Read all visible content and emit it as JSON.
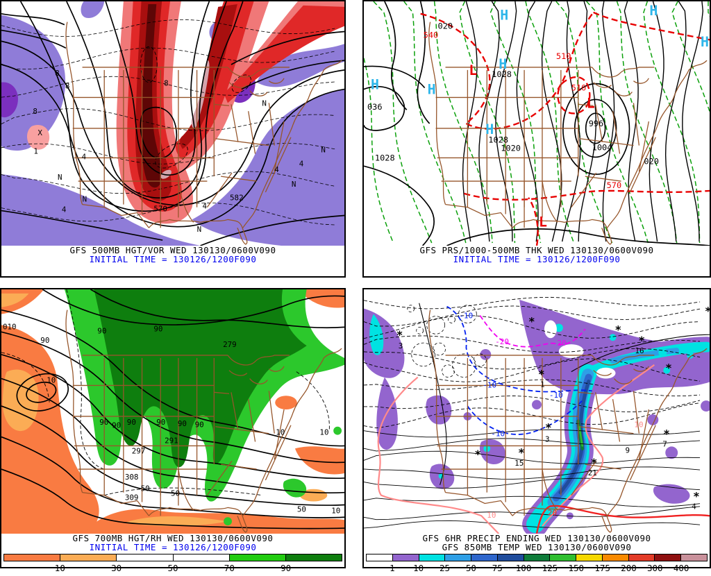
{
  "panels": [
    {
      "id": "500mb-hgt-vor",
      "caption_line1": "GFS 500MB HGT/VOR WED 130130/0600V090",
      "caption_line2": "INITIAL TIME = 130126/1200F090",
      "caption_line2_color": "#0000ee",
      "labels": [
        [
          "8",
          78,
          108,
          "k"
        ],
        [
          "8",
          93,
          127,
          "k"
        ],
        [
          "8",
          46,
          164,
          "k"
        ],
        [
          "X",
          53,
          195,
          "k"
        ],
        [
          "1",
          47,
          222,
          "k"
        ],
        [
          "4",
          117,
          230,
          "k"
        ],
        [
          "N",
          82,
          260,
          "k"
        ],
        [
          "N",
          118,
          292,
          "k"
        ],
        [
          "4",
          88,
          307,
          "k"
        ],
        [
          "570",
          222,
          306,
          "k"
        ],
        [
          "582",
          333,
          290,
          "k"
        ],
        [
          "4",
          293,
          302,
          "k"
        ],
        [
          "N",
          285,
          336,
          "k"
        ],
        [
          "N",
          423,
          270,
          "k"
        ],
        [
          "4",
          398,
          249,
          "k"
        ],
        [
          "4",
          434,
          240,
          "k"
        ],
        [
          "N",
          466,
          220,
          "k"
        ],
        [
          "8",
          237,
          123,
          "k"
        ],
        [
          "N",
          380,
          152,
          "k"
        ]
      ]
    },
    {
      "id": "prs-thickness",
      "caption_line1": "GFS PRS/1000-500MB THK WED 130130/0600V090",
      "caption_line2": "INITIAL TIME = 130126/1200F090",
      "caption_line2_color": "#0000ee",
      "labels": [
        [
          "020",
          107,
          40,
          "k"
        ],
        [
          "540",
          86,
          53,
          "r"
        ],
        [
          "H",
          197,
          27,
          "c",
          20
        ],
        [
          "H",
          413,
          20,
          "c",
          20
        ],
        [
          "H",
          487,
          66,
          "c",
          20
        ],
        [
          "510",
          278,
          84,
          "r"
        ],
        [
          "H",
          195,
          98,
          "c",
          20
        ],
        [
          "L",
          152,
          107,
          "r",
          20
        ],
        [
          "1028",
          185,
          110,
          "k"
        ],
        [
          "H",
          10,
          128,
          "c",
          20
        ],
        [
          "H",
          92,
          135,
          "c",
          20
        ],
        [
          "510",
          300,
          130,
          "r"
        ],
        [
          "L",
          322,
          155,
          "r",
          20
        ],
        [
          "036",
          5,
          158,
          "k"
        ],
        [
          "996",
          325,
          182,
          "k"
        ],
        [
          "H",
          176,
          193,
          "c",
          20
        ],
        [
          "1028",
          180,
          206,
          "k"
        ],
        [
          "1020",
          198,
          218,
          "k"
        ],
        [
          "1028",
          16,
          232,
          "k"
        ],
        [
          "1004",
          330,
          217,
          "k"
        ],
        [
          "020",
          405,
          237,
          "k"
        ],
        [
          "570",
          351,
          272,
          "r"
        ],
        [
          "L",
          253,
          328,
          "r",
          20
        ]
      ]
    },
    {
      "id": "700mb-hgt-rh",
      "caption_line1": "GFS 700MB HGT/RH WED 130130/0600V090",
      "caption_line2": "INITIAL TIME = 130126/1200F090",
      "caption_line2_color": "#0000ee",
      "labels": [
        [
          "010",
          2,
          58,
          "k"
        ],
        [
          "90",
          57,
          78,
          "k"
        ],
        [
          "90",
          140,
          64,
          "k"
        ],
        [
          "90",
          222,
          61,
          "k"
        ],
        [
          "279",
          323,
          84,
          "k"
        ],
        [
          "10",
          66,
          136,
          "k"
        ],
        [
          "90",
          143,
          197,
          "k"
        ],
        [
          "90",
          161,
          202,
          "k"
        ],
        [
          "90",
          183,
          197,
          "k"
        ],
        [
          "90",
          226,
          197,
          "k"
        ],
        [
          "90",
          257,
          199,
          "k"
        ],
        [
          "90",
          282,
          201,
          "k"
        ],
        [
          "297",
          190,
          239,
          "k"
        ],
        [
          "291",
          238,
          224,
          "k"
        ],
        [
          "308",
          180,
          277,
          "k"
        ],
        [
          "50",
          203,
          294,
          "k"
        ],
        [
          "309",
          180,
          307,
          "k"
        ],
        [
          "50",
          247,
          301,
          "k"
        ],
        [
          "10",
          400,
          212,
          "k"
        ],
        [
          "10",
          464,
          212,
          "k"
        ],
        [
          "50",
          431,
          324,
          "k"
        ],
        [
          "10",
          481,
          326,
          "k"
        ]
      ]
    },
    {
      "id": "6hr-precip-850temp",
      "caption_line1": "GFS 6HR PRECIP ENDING WED 130130/0600V090",
      "caption_line2": "GFS 850MB TEMP WED 130130/0600V090",
      "caption_line2_color": "#000000",
      "labels": [
        [
          "*",
          47,
          72,
          "k",
          16
        ],
        [
          "3",
          50,
          86,
          "k"
        ],
        [
          "*",
          238,
          52,
          "k",
          16
        ],
        [
          "*",
          363,
          64,
          "k",
          16
        ],
        [
          "*",
          493,
          37,
          "k",
          16
        ],
        [
          "*",
          397,
          80,
          "k",
          16
        ],
        [
          "16",
          392,
          93,
          "k"
        ],
        [
          "*",
          252,
          129,
          "k",
          16
        ],
        [
          "1",
          255,
          142,
          "k"
        ],
        [
          "*",
          436,
          120,
          "k",
          16
        ],
        [
          "*",
          160,
          246,
          "k",
          16
        ],
        [
          "*",
          262,
          207,
          "k",
          16
        ],
        [
          "3",
          262,
          222,
          "k"
        ],
        [
          "*",
          223,
          243,
          "k",
          16
        ],
        [
          "15",
          218,
          257,
          "k"
        ],
        [
          "*",
          328,
          258,
          "k",
          16
        ],
        [
          "21",
          324,
          271,
          "k"
        ],
        [
          "9",
          378,
          238,
          "k"
        ],
        [
          "*",
          433,
          216,
          "k",
          16
        ],
        [
          "7",
          432,
          229,
          "k"
        ],
        [
          "*",
          476,
          307,
          "k",
          16
        ],
        [
          "4",
          474,
          320,
          "k"
        ],
        [
          "-10",
          138,
          42,
          "b"
        ],
        [
          "-10",
          172,
          143,
          "b"
        ],
        [
          "-10",
          268,
          158,
          "b"
        ],
        [
          "-10",
          184,
          214,
          "b"
        ],
        [
          "-20",
          190,
          80,
          "m"
        ],
        [
          "-20",
          273,
          82,
          "m"
        ],
        [
          "10",
          178,
          333,
          "p"
        ],
        [
          "10",
          391,
          201,
          "p"
        ],
        [
          "20",
          266,
          329,
          "rd"
        ]
      ]
    }
  ],
  "label_colors": {
    "k": "#000000",
    "r": "#e80000",
    "c": "#2eb6ea",
    "b": "#0020f0",
    "m": "#f000f0",
    "p": "#ff8a8a",
    "rd": "#f02020"
  },
  "colorbars": [
    {
      "panel": 2,
      "name": "relative-humidity-scale",
      "colors": [
        "#f97b42",
        "#fbac55",
        "#ffffff",
        "#ffffff",
        "#22cc11",
        "#0e7e0e"
      ],
      "ticks": [
        "10",
        "30",
        "50",
        "70",
        "90"
      ]
    },
    {
      "panel": 3,
      "name": "precip-amount-scale",
      "colors": [
        "#ffffff",
        "#9365ce",
        "#00e2e2",
        "#2e9fe6",
        "#2e66cc",
        "#1f4c9c",
        "#0e7c3a",
        "#2fbe2f",
        "#f5d800",
        "#f98a00",
        "#e33c28",
        "#8f1010",
        "#c9919b"
      ],
      "ticks": [
        "1",
        "10",
        "25",
        "50",
        "75",
        "100",
        "125",
        "150",
        "175",
        "200",
        "300",
        "400"
      ]
    }
  ],
  "map_colors": {
    "purple_fill": "#8f7cd8",
    "violet_fill": "#7b2fbe",
    "vort_red_light": "#f07878",
    "vort_red": "#e02828",
    "vort_red_dark": "#a80f0f",
    "vort_red_core": "#5e0606",
    "vort_rose": "#d4a4ac",
    "pink_blob": "#f8a0a0",
    "orange": "#f97b42",
    "orange_light": "#fbac55",
    "green_light": "#2cc82c",
    "green_dark": "#0e7e0e",
    "precip_purple": "#9365ce",
    "precip_cyan": "#00e2e2",
    "precip_lblue": "#2e9fe6",
    "precip_blue": "#2e66cc",
    "precip_dblue": "#1f4c9c",
    "precip_dgreen": "#0e7c3a",
    "precip_green": "#2fbe2f",
    "geography_brown": "#96562b"
  }
}
